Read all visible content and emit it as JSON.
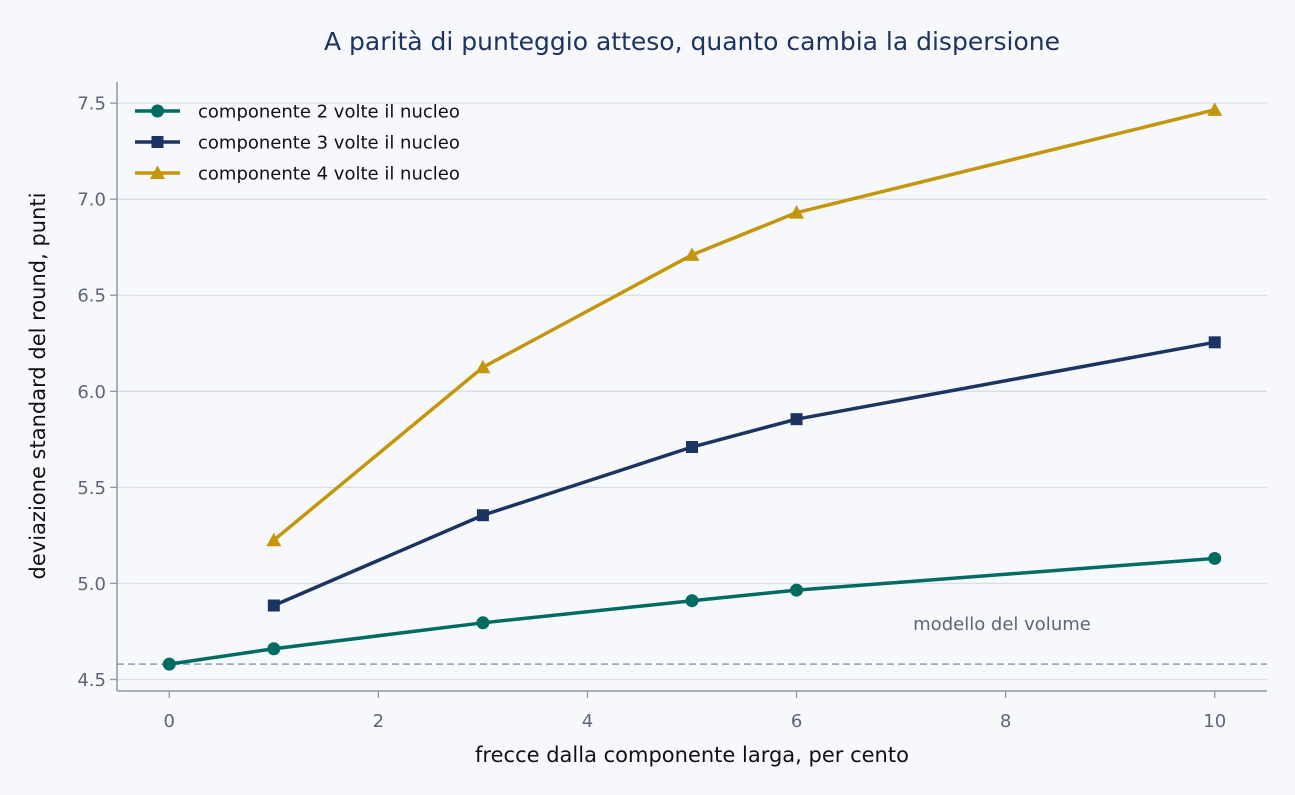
{
  "chart_data": {
    "type": "line",
    "title": "A parità di punteggio atteso, quanto cambia la dispersione",
    "xlabel": "frecce dalla componente larga, per cento",
    "ylabel": "deviazione standard del round, punti",
    "xlim": [
      -0.5,
      10.5
    ],
    "ylim": [
      4.44,
      7.61
    ],
    "xticks": [
      0,
      2,
      4,
      6,
      8,
      10
    ],
    "yticks": [
      4.5,
      5.0,
      5.5,
      6.0,
      6.5,
      7.0,
      7.5
    ],
    "grid": "horizontal",
    "legend_position": "top-left",
    "series": [
      {
        "name": "componente 2 volte il nucleo",
        "color": "#006b63",
        "marker": "circle",
        "x": [
          0,
          1,
          3,
          5,
          6,
          10
        ],
        "y": [
          4.58,
          4.66,
          4.795,
          4.91,
          4.965,
          5.13
        ]
      },
      {
        "name": "componente 3 volte il nucleo",
        "color": "#1b3461",
        "marker": "square",
        "x": [
          1,
          3,
          5,
          6,
          10
        ],
        "y": [
          4.885,
          5.355,
          5.71,
          5.855,
          6.255
        ]
      },
      {
        "name": "componente 4 volte il nucleo",
        "color": "#c4960c",
        "marker": "triangle",
        "x": [
          1,
          3,
          5,
          6,
          10
        ],
        "y": [
          5.225,
          6.125,
          6.71,
          6.93,
          7.465
        ]
      }
    ],
    "reference_line": {
      "label": "modello del volume",
      "y": 4.58,
      "color": "#9aaabf",
      "style": "dashed"
    },
    "colors": {
      "background": "#f6f8fb",
      "title": "#1b3461",
      "axis": "#8a98ac",
      "grid": "#d9dee6",
      "tick_text": "#5b6678",
      "annotation_text": "#5b6678"
    }
  }
}
